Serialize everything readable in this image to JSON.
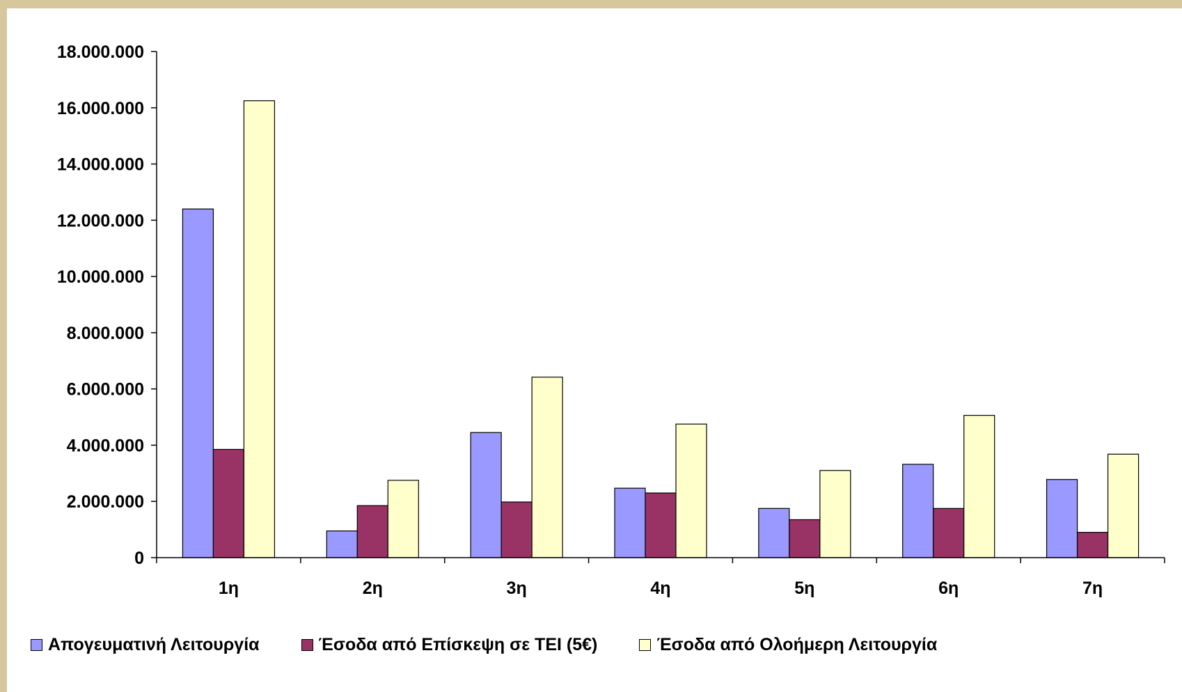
{
  "chart_data": {
    "type": "bar",
    "title": "",
    "xlabel": "",
    "ylabel": "",
    "categories": [
      "1η",
      "2η",
      "3η",
      "4η",
      "5η",
      "6η",
      "7η"
    ],
    "series": [
      {
        "name": "Απογευματινή Λειτουργία",
        "color": "#9999ff",
        "values": [
          12400000,
          950000,
          4450000,
          2470000,
          1750000,
          3320000,
          2780000
        ]
      },
      {
        "name": "Έσοδα από Επίσκεψη σε ΤΕΙ (5€)",
        "color": "#993366",
        "values": [
          3850000,
          1850000,
          1980000,
          2300000,
          1350000,
          1750000,
          900000
        ]
      },
      {
        "name": "Έσοδα από Ολοήμερη Λειτουργία",
        "color": "#ffffcc",
        "values": [
          16250000,
          2750000,
          6420000,
          4750000,
          3100000,
          5060000,
          3680000
        ]
      }
    ],
    "ylim": [
      0,
      18000000
    ],
    "yticks": [
      0,
      2000000,
      4000000,
      6000000,
      8000000,
      10000000,
      12000000,
      14000000,
      16000000,
      18000000
    ],
    "ytick_labels": [
      "0",
      "2.000.000",
      "4.000.000",
      "6.000.000",
      "8.000.000",
      "10.000.000",
      "12.000.000",
      "14.000.000",
      "16.000.000",
      "18.000.000"
    ],
    "grid": false,
    "legend_position": "bottom"
  },
  "colors": {
    "frame": "#d8c79c",
    "background": "#ffffff",
    "title": "#0033ee"
  }
}
